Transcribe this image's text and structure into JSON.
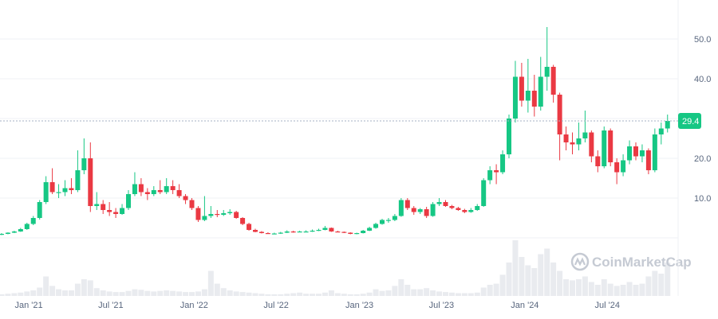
{
  "chart_data": {
    "type": "candlestick",
    "interval": "2w",
    "ylim": [
      0,
      55
    ],
    "y_ticks": [
      10,
      20,
      40,
      50
    ],
    "y_tick_labels": [
      "10.0",
      "20.0",
      "40.0",
      "50.0"
    ],
    "x_ticks": [
      {
        "date": "2021-01-01",
        "label": "Jan '21"
      },
      {
        "date": "2021-07-01",
        "label": "Jul '21"
      },
      {
        "date": "2022-01-01",
        "label": "Jan '22"
      },
      {
        "date": "2022-07-01",
        "label": "Jul '22"
      },
      {
        "date": "2023-01-01",
        "label": "Jan '23"
      },
      {
        "date": "2023-07-01",
        "label": "Jul '23"
      },
      {
        "date": "2024-01-01",
        "label": "Jan '24"
      },
      {
        "date": "2024-07-01",
        "label": "Jul '24"
      }
    ],
    "grid": true,
    "current_price": 29.4,
    "current_price_label": "29.4",
    "watermark": "CoinMarketCap",
    "colors": {
      "up": "#16c784",
      "down": "#ea3943",
      "volume": "#e9ebef",
      "grid": "#eff2f5",
      "price_tag": "#16c784"
    },
    "dates": [
      "2020-11-02",
      "2020-11-16",
      "2020-11-30",
      "2020-12-14",
      "2020-12-28",
      "2021-01-11",
      "2021-01-25",
      "2021-02-08",
      "2021-02-22",
      "2021-03-08",
      "2021-03-22",
      "2021-04-05",
      "2021-04-19",
      "2021-05-03",
      "2021-05-17",
      "2021-05-31",
      "2021-06-14",
      "2021-06-28",
      "2021-07-12",
      "2021-07-26",
      "2021-08-09",
      "2021-08-23",
      "2021-09-06",
      "2021-09-20",
      "2021-10-04",
      "2021-10-18",
      "2021-11-01",
      "2021-11-15",
      "2021-11-29",
      "2021-12-13",
      "2021-12-27",
      "2022-01-10",
      "2022-01-24",
      "2022-02-07",
      "2022-02-21",
      "2022-03-07",
      "2022-03-21",
      "2022-04-04",
      "2022-04-18",
      "2022-05-02",
      "2022-05-16",
      "2022-05-30",
      "2022-06-13",
      "2022-06-27",
      "2022-07-11",
      "2022-07-25",
      "2022-08-08",
      "2022-08-22",
      "2022-09-05",
      "2022-09-19",
      "2022-10-03",
      "2022-10-17",
      "2022-10-31",
      "2022-11-14",
      "2022-11-28",
      "2022-12-12",
      "2022-12-26",
      "2023-01-09",
      "2023-01-23",
      "2023-02-06",
      "2023-02-20",
      "2023-03-06",
      "2023-03-20",
      "2023-04-03",
      "2023-04-17",
      "2023-05-01",
      "2023-05-15",
      "2023-05-29",
      "2023-06-12",
      "2023-06-26",
      "2023-07-10",
      "2023-07-24",
      "2023-08-07",
      "2023-08-21",
      "2023-09-04",
      "2023-09-18",
      "2023-10-02",
      "2023-10-16",
      "2023-10-30",
      "2023-11-13",
      "2023-11-27",
      "2023-12-11",
      "2023-12-25",
      "2024-01-08",
      "2024-01-22",
      "2024-02-05",
      "2024-02-19",
      "2024-03-04",
      "2024-03-18",
      "2024-04-01",
      "2024-04-15",
      "2024-04-29",
      "2024-05-13",
      "2024-05-27",
      "2024-06-10",
      "2024-06-24",
      "2024-07-08",
      "2024-07-22",
      "2024-08-05",
      "2024-08-19",
      "2024-09-02",
      "2024-09-16",
      "2024-09-30",
      "2024-10-14",
      "2024-10-28",
      "2024-11-11"
    ],
    "ohlc": [
      [
        0.8,
        1.2,
        0.7,
        1.0
      ],
      [
        1.0,
        1.4,
        0.9,
        1.3
      ],
      [
        1.3,
        1.8,
        1.2,
        1.6
      ],
      [
        1.6,
        2.5,
        1.5,
        2.2
      ],
      [
        2.2,
        3.8,
        2.0,
        3.5
      ],
      [
        3.5,
        5.5,
        3.2,
        5.0
      ],
      [
        5.0,
        9.5,
        4.6,
        9.0
      ],
      [
        9.0,
        15.5,
        8.5,
        14.0
      ],
      [
        14.0,
        17.5,
        11.0,
        11.5
      ],
      [
        11.5,
        13.5,
        10.0,
        11.5
      ],
      [
        11.5,
        14.5,
        10.5,
        12.5
      ],
      [
        12.5,
        15.0,
        11.0,
        12.0
      ],
      [
        12.0,
        22.0,
        11.5,
        17.0
      ],
      [
        17.0,
        25.0,
        16.0,
        20.0
      ],
      [
        20.0,
        24.0,
        6.5,
        8.0
      ],
      [
        8.0,
        11.5,
        7.0,
        8.5
      ],
      [
        8.5,
        9.5,
        6.0,
        7.0
      ],
      [
        7.0,
        9.0,
        5.5,
        6.5
      ],
      [
        6.5,
        7.5,
        5.0,
        6.0
      ],
      [
        6.0,
        8.5,
        5.8,
        7.5
      ],
      [
        7.5,
        12.0,
        7.0,
        11.0
      ],
      [
        11.0,
        16.5,
        10.5,
        13.5
      ],
      [
        13.5,
        15.0,
        10.5,
        11.5
      ],
      [
        11.5,
        12.5,
        9.5,
        11.0
      ],
      [
        11.0,
        13.0,
        10.5,
        12.0
      ],
      [
        12.0,
        14.5,
        11.0,
        11.5
      ],
      [
        11.5,
        15.0,
        11.0,
        13.0
      ],
      [
        13.0,
        14.5,
        11.0,
        12.0
      ],
      [
        12.0,
        13.5,
        10.0,
        10.5
      ],
      [
        10.5,
        11.0,
        8.5,
        9.5
      ],
      [
        9.5,
        10.0,
        7.0,
        7.5
      ],
      [
        7.5,
        8.0,
        4.0,
        4.5
      ],
      [
        4.5,
        10.5,
        4.2,
        5.5
      ],
      [
        5.5,
        8.0,
        5.0,
        6.0
      ],
      [
        6.0,
        7.0,
        5.2,
        5.8
      ],
      [
        5.8,
        7.0,
        5.5,
        6.2
      ],
      [
        6.2,
        7.2,
        5.8,
        6.5
      ],
      [
        6.5,
        6.8,
        4.8,
        5.0
      ],
      [
        5.0,
        5.2,
        3.2,
        3.5
      ],
      [
        3.5,
        3.8,
        1.8,
        2.0
      ],
      [
        2.0,
        2.3,
        1.4,
        1.5
      ],
      [
        1.5,
        1.7,
        1.1,
        1.2
      ],
      [
        1.2,
        1.4,
        1.0,
        1.1
      ],
      [
        1.1,
        1.3,
        1.0,
        1.1
      ],
      [
        1.1,
        1.5,
        1.0,
        1.3
      ],
      [
        1.3,
        1.9,
        1.2,
        1.6
      ],
      [
        1.6,
        1.8,
        1.3,
        1.5
      ],
      [
        1.5,
        1.8,
        1.4,
        1.6
      ],
      [
        1.6,
        1.9,
        1.4,
        1.6
      ],
      [
        1.6,
        2.1,
        1.5,
        1.8
      ],
      [
        1.8,
        2.3,
        1.7,
        2.0
      ],
      [
        2.0,
        3.0,
        1.9,
        2.5
      ],
      [
        2.5,
        2.6,
        1.5,
        1.6
      ],
      [
        1.6,
        1.8,
        1.4,
        1.5
      ],
      [
        1.5,
        1.6,
        1.2,
        1.3
      ],
      [
        1.3,
        1.4,
        0.9,
        1.0
      ],
      [
        1.0,
        1.3,
        0.9,
        1.2
      ],
      [
        1.2,
        2.0,
        1.1,
        1.8
      ],
      [
        1.8,
        2.8,
        1.7,
        2.5
      ],
      [
        2.5,
        3.8,
        2.3,
        3.5
      ],
      [
        3.5,
        4.8,
        3.3,
        4.5
      ],
      [
        4.5,
        5.0,
        3.8,
        4.5
      ],
      [
        4.5,
        6.0,
        4.2,
        5.5
      ],
      [
        5.5,
        10.0,
        5.3,
        9.5
      ],
      [
        9.5,
        10.0,
        7.0,
        7.5
      ],
      [
        7.5,
        8.0,
        5.8,
        6.5
      ],
      [
        6.5,
        7.5,
        6.0,
        7.2
      ],
      [
        7.2,
        7.8,
        5.0,
        5.5
      ],
      [
        5.5,
        9.0,
        5.3,
        8.5
      ],
      [
        8.5,
        10.0,
        8.0,
        9.0
      ],
      [
        9.0,
        9.5,
        7.8,
        8.0
      ],
      [
        8.0,
        8.3,
        7.2,
        7.5
      ],
      [
        7.5,
        7.8,
        6.8,
        7.0
      ],
      [
        7.0,
        7.3,
        6.2,
        6.5
      ],
      [
        6.5,
        7.5,
        6.3,
        7.0
      ],
      [
        7.0,
        8.5,
        6.8,
        8.0
      ],
      [
        8.0,
        15.0,
        7.8,
        14.5
      ],
      [
        14.5,
        18.0,
        13.5,
        17.0
      ],
      [
        17.0,
        18.5,
        13.5,
        16.5
      ],
      [
        16.5,
        22.0,
        16.0,
        21.0
      ],
      [
        21.0,
        31.0,
        20.0,
        30.0
      ],
      [
        30.0,
        44.5,
        29.0,
        40.5
      ],
      [
        40.5,
        44.0,
        33.0,
        34.5
      ],
      [
        34.5,
        45.0,
        31.5,
        37.0
      ],
      [
        37.0,
        41.0,
        30.5,
        33.0
      ],
      [
        33.0,
        45.5,
        32.0,
        40.5
      ],
      [
        40.5,
        53.0,
        37.0,
        43.0
      ],
      [
        43.0,
        43.5,
        34.0,
        36.0
      ],
      [
        36.0,
        36.5,
        19.5,
        26.0
      ],
      [
        26.0,
        28.0,
        22.0,
        24.0
      ],
      [
        24.0,
        26.5,
        21.0,
        23.5
      ],
      [
        23.5,
        29.0,
        22.0,
        25.0
      ],
      [
        25.0,
        32.0,
        24.0,
        26.5
      ],
      [
        26.5,
        27.0,
        19.0,
        20.5
      ],
      [
        20.5,
        22.0,
        16.5,
        18.0
      ],
      [
        18.0,
        28.0,
        17.5,
        27.0
      ],
      [
        27.0,
        27.5,
        18.0,
        19.0
      ],
      [
        19.0,
        20.0,
        13.5,
        16.5
      ],
      [
        16.5,
        21.0,
        15.5,
        19.5
      ],
      [
        19.5,
        24.5,
        18.5,
        23.0
      ],
      [
        23.0,
        24.0,
        19.5,
        20.5
      ],
      [
        20.5,
        23.5,
        19.0,
        22.0
      ],
      [
        22.0,
        22.5,
        16.0,
        17.0
      ],
      [
        17.0,
        27.5,
        16.5,
        26.0
      ],
      [
        26.0,
        29.0,
        23.5,
        27.5
      ],
      [
        27.5,
        31.0,
        26.5,
        29.4
      ]
    ],
    "volume_relative": [
      3,
      4,
      5,
      6,
      8,
      10,
      15,
      35,
      18,
      12,
      10,
      10,
      22,
      30,
      28,
      14,
      10,
      8,
      7,
      7,
      9,
      12,
      11,
      9,
      8,
      9,
      10,
      9,
      8,
      7,
      7,
      8,
      12,
      45,
      22,
      14,
      10,
      8,
      7,
      6,
      5,
      4,
      3,
      3,
      3,
      4,
      5,
      6,
      4,
      4,
      4,
      6,
      10,
      5,
      4,
      3,
      3,
      4,
      6,
      12,
      9,
      10,
      18,
      30,
      20,
      12,
      12,
      14,
      10,
      8,
      7,
      6,
      5,
      5,
      5,
      6,
      15,
      20,
      22,
      38,
      60,
      100,
      70,
      55,
      50,
      75,
      85,
      60,
      45,
      30,
      28,
      30,
      35,
      25,
      20,
      30,
      22,
      18,
      20,
      25,
      20,
      22,
      35,
      45,
      40,
      60
    ]
  }
}
